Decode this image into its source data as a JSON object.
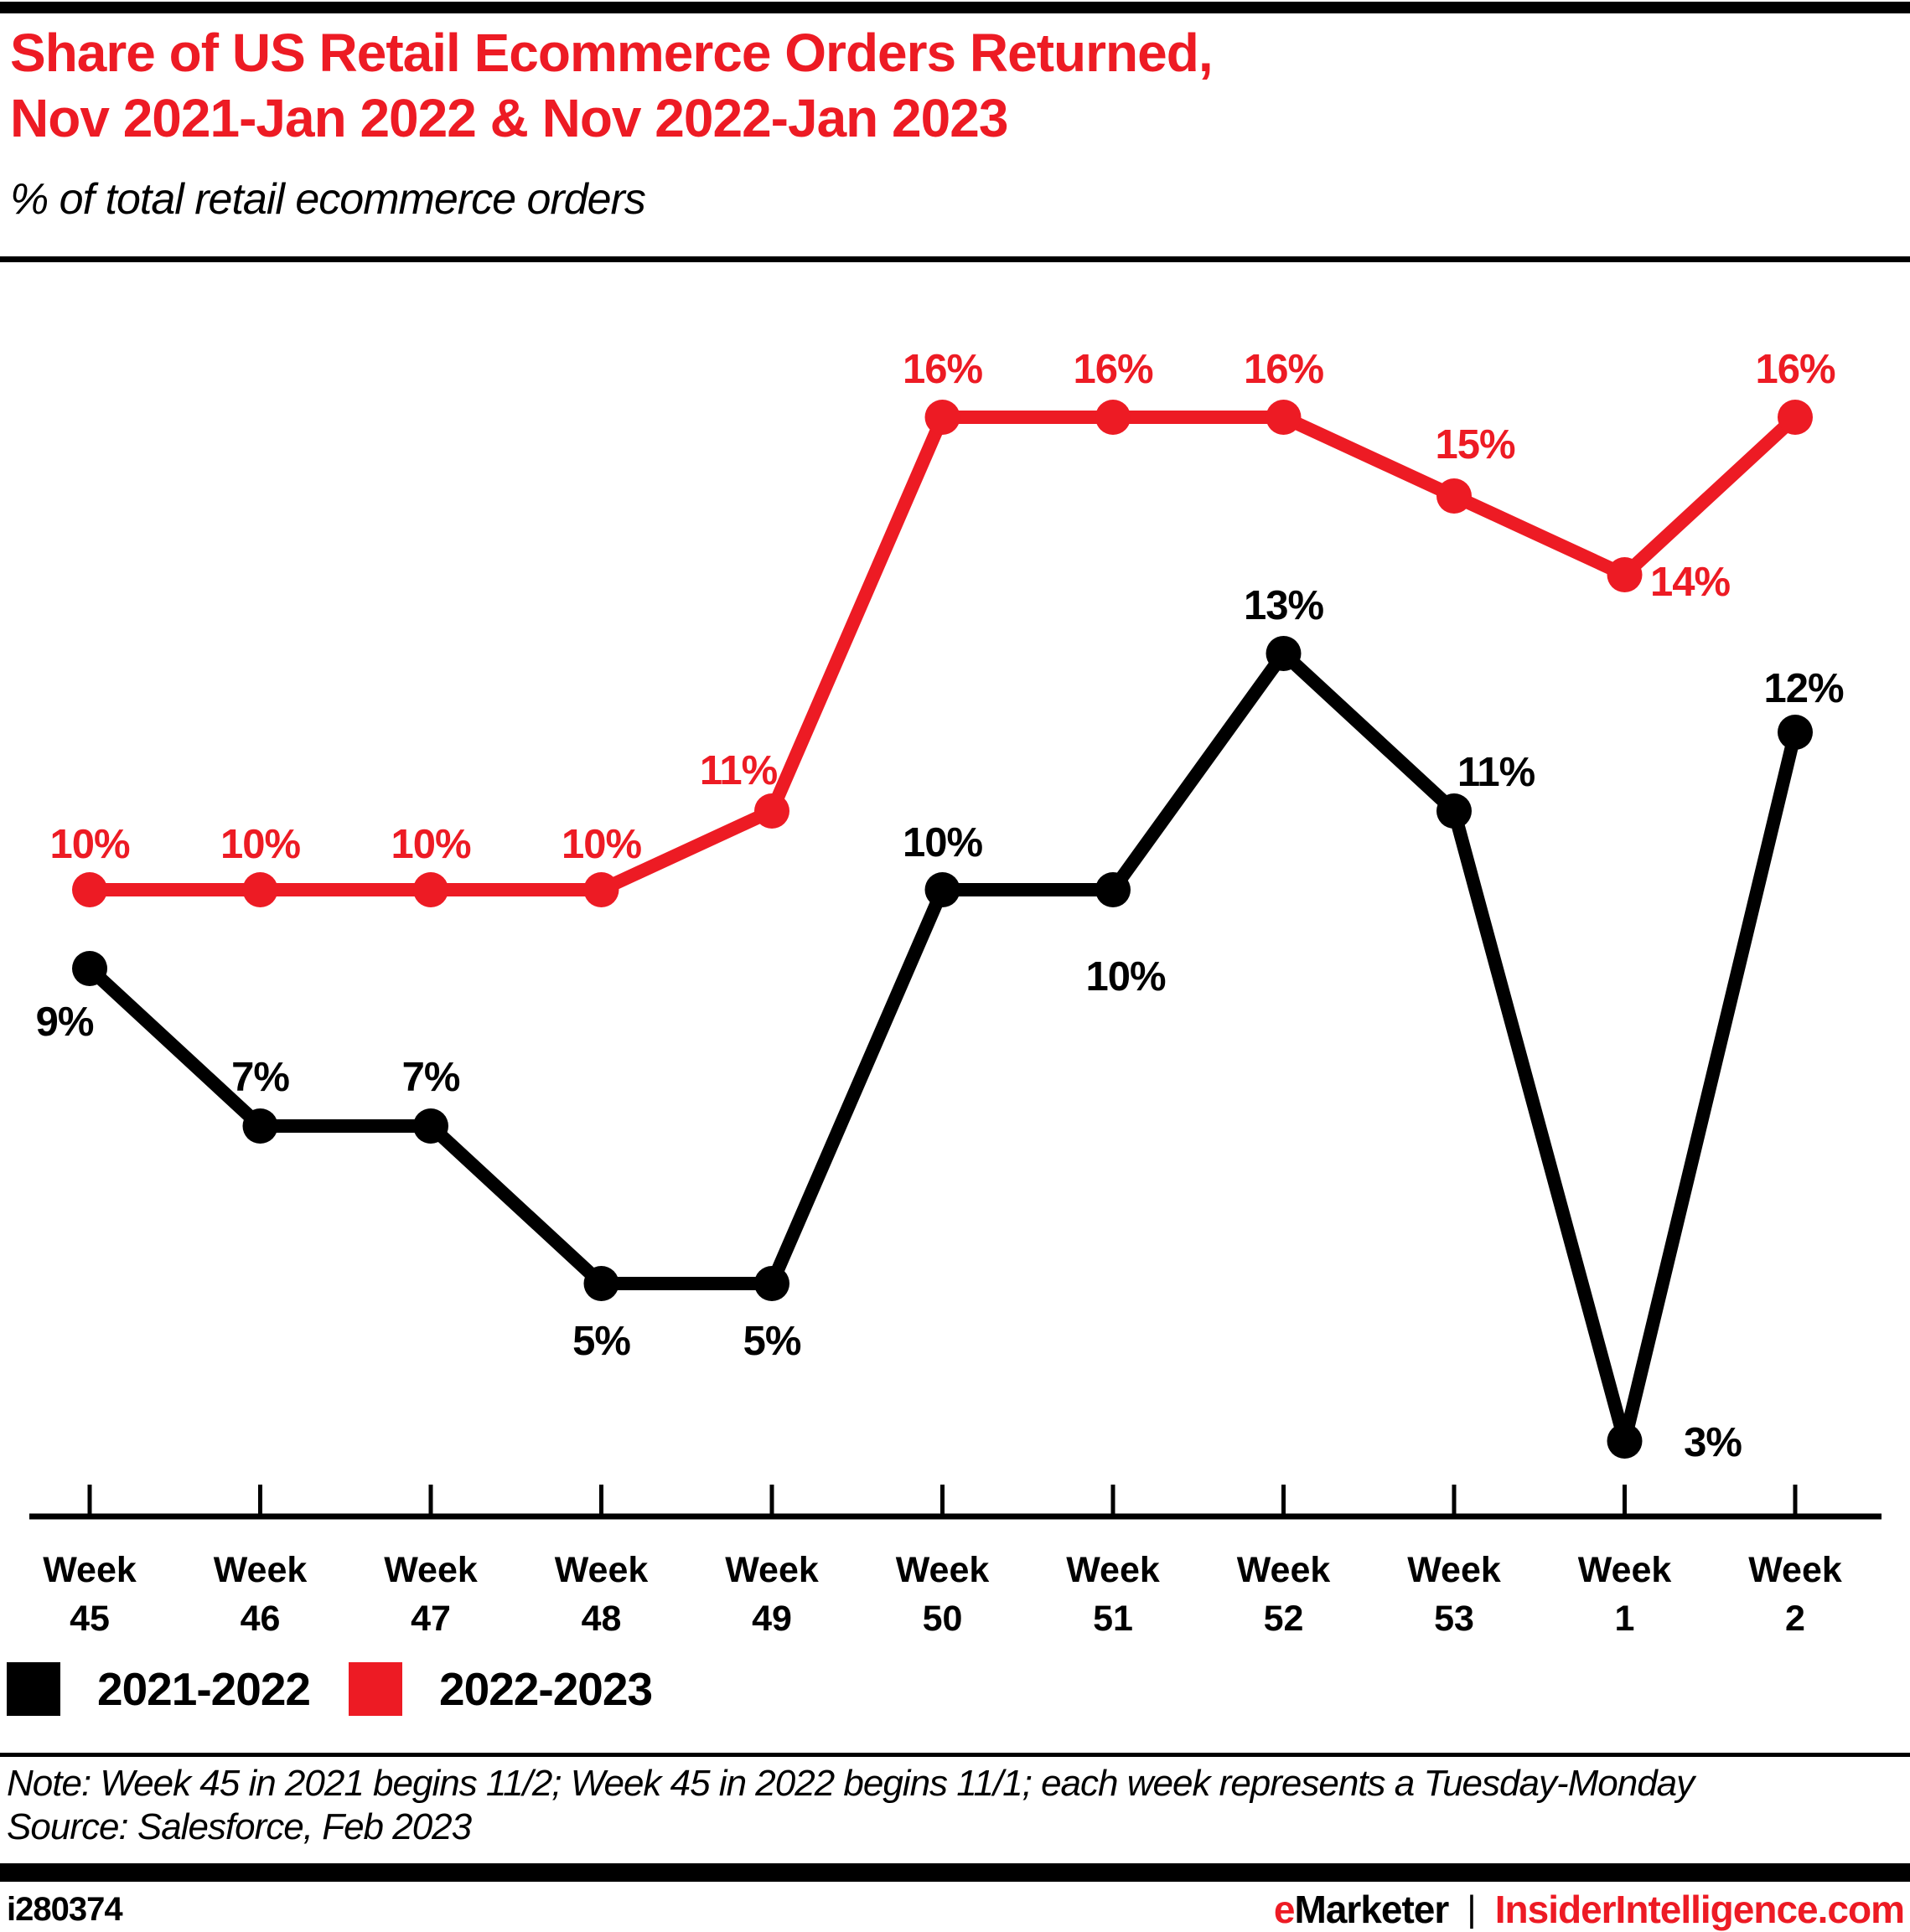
{
  "header": {
    "title_line1": "Share of US Retail Ecommerce Orders Returned,",
    "title_line2": "Nov 2021-Jan 2022 & Nov 2022-Jan 2023",
    "subtitle": "% of total retail ecommerce orders"
  },
  "chart_data": {
    "type": "line",
    "title": "Share of US Retail Ecommerce Orders Returned, Nov 2021-Jan 2022 & Nov 2022-Jan 2023",
    "subtitle": "% of total retail ecommerce orders",
    "x_prefix": "Week",
    "categories": [
      "45",
      "46",
      "47",
      "48",
      "49",
      "50",
      "51",
      "52",
      "53",
      "1",
      "2"
    ],
    "unit": "%",
    "ylim": [
      0,
      18
    ],
    "grid": false,
    "legend_position": "bottom-left",
    "series": [
      {
        "name": "2021-2022",
        "color": "#000000",
        "values": [
          9,
          7,
          7,
          5,
          5,
          10,
          10,
          13,
          11,
          3,
          12
        ],
        "label_offsets": [
          [
            -30,
            80
          ],
          [
            0,
            -42
          ],
          [
            0,
            -42
          ],
          [
            0,
            85
          ],
          [
            0,
            85
          ],
          [
            0,
            -40
          ],
          [
            15,
            120
          ],
          [
            0,
            -41
          ],
          [
            50,
            -30
          ],
          [
            105,
            18
          ],
          [
            10,
            -36
          ]
        ]
      },
      {
        "name": "2022-2023",
        "color": "#ED1B24",
        "values": [
          10,
          10,
          10,
          10,
          11,
          16,
          16,
          16,
          15,
          14,
          16
        ],
        "label_offsets": [
          [
            0,
            -38
          ],
          [
            0,
            -38
          ],
          [
            0,
            -38
          ],
          [
            0,
            -38
          ],
          [
            -40,
            -32
          ],
          [
            0,
            -41
          ],
          [
            0,
            -41
          ],
          [
            0,
            -41
          ],
          [
            25,
            -45
          ],
          [
            78,
            25
          ],
          [
            0,
            -41
          ]
        ]
      }
    ]
  },
  "notes": {
    "note": "Note: Week 45 in 2021 begins 11/2; Week 45 in 2022 begins 11/1; each week represents a Tuesday-Monday",
    "source": "Source: Salesforce, Feb 2023"
  },
  "footer": {
    "chart_id": "i280374",
    "brand_first_letter": "e",
    "brand_rest": "Marketer",
    "divider": "|",
    "site": "InsiderIntelligence.com"
  },
  "colors": {
    "accent_red": "#ED1B24",
    "black": "#000000"
  }
}
